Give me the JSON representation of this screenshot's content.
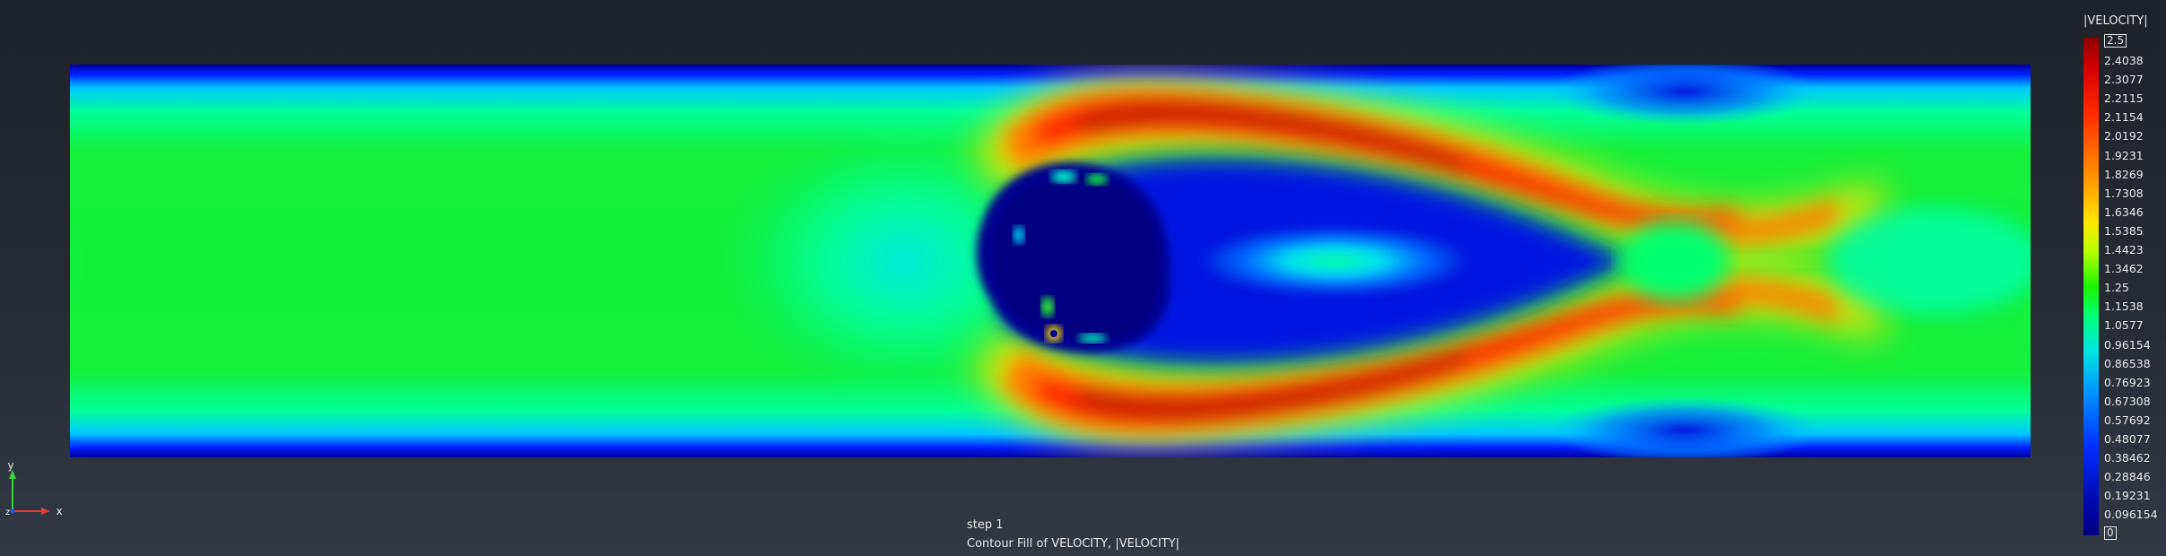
{
  "colorbar": {
    "title": "|VELOCITY|",
    "max_label": "2.5",
    "min_label": "0",
    "ticks": [
      "2.4038",
      "2.3077",
      "2.2115",
      "2.1154",
      "2.0192",
      "1.9231",
      "1.8269",
      "1.7308",
      "1.6346",
      "1.5385",
      "1.4423",
      "1.3462",
      "1.25",
      "1.1538",
      "1.0577",
      "0.96154",
      "0.86538",
      "0.76923",
      "0.67308",
      "0.57692",
      "0.48077",
      "0.38462",
      "0.28846",
      "0.19231",
      "0.096154"
    ]
  },
  "caption": {
    "step": "step 1",
    "description": "Contour Fill of VELOCITY, |VELOCITY|"
  },
  "axes": {
    "x_label": "x",
    "y_label": "y",
    "z_label": "z"
  },
  "colors": {
    "background_top": "#1e2229",
    "background_bottom": "#323944",
    "x_axis": "#e53935",
    "y_axis": "#3ad13a",
    "z_axis": "#3050ff",
    "text": "#e8e8e8"
  }
}
